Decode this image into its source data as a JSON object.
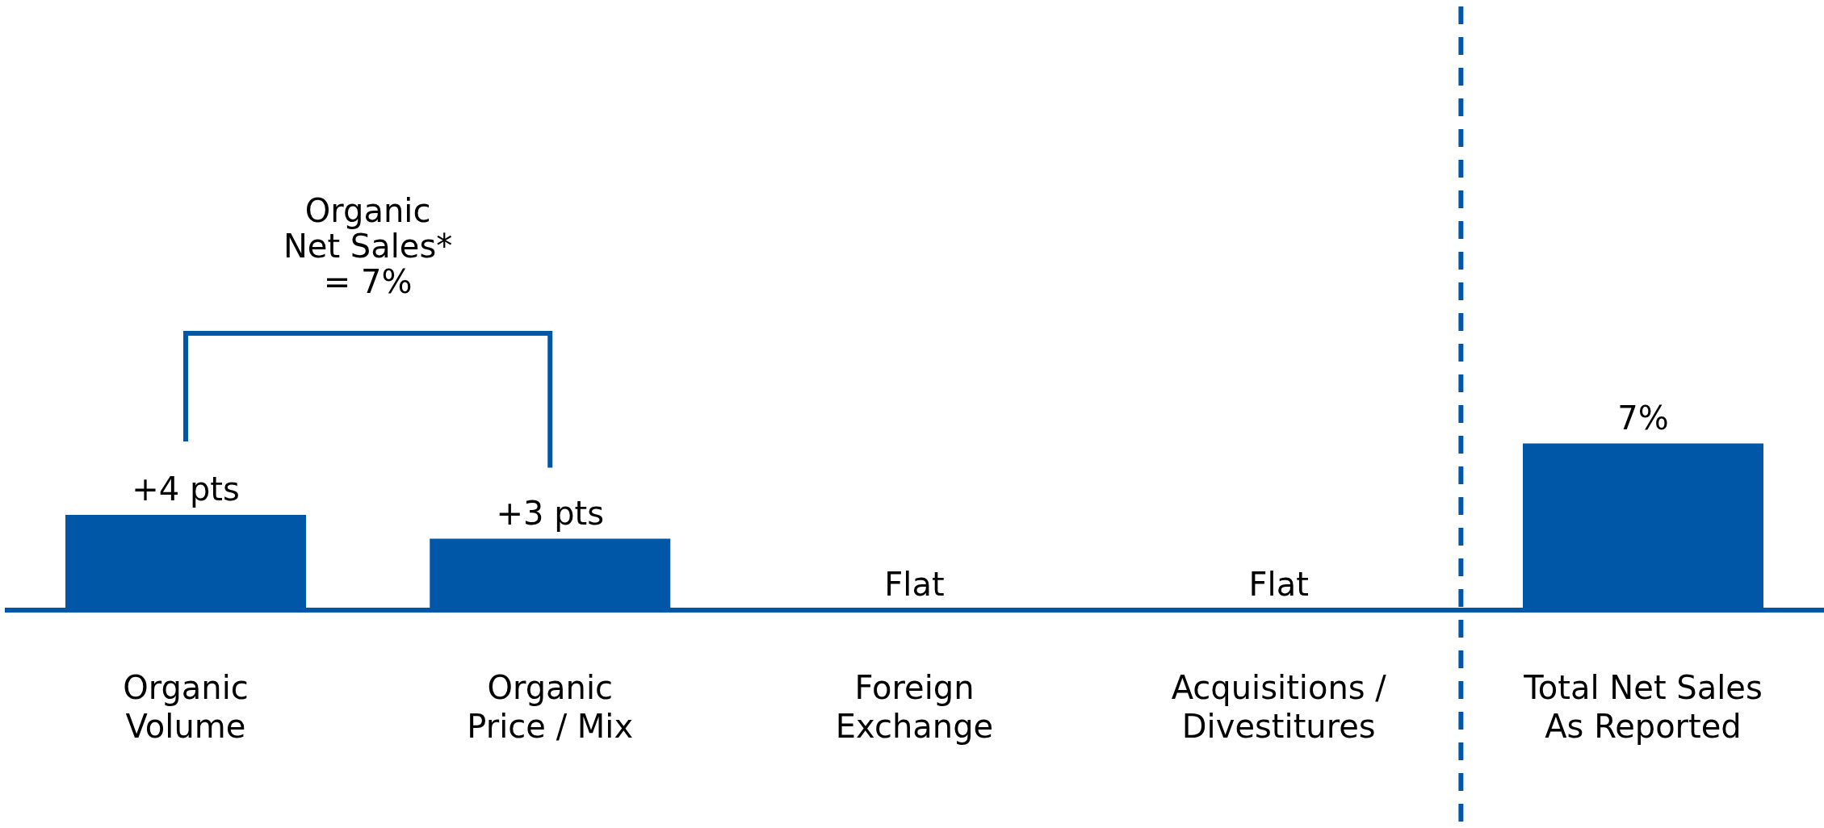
{
  "chart_data": {
    "type": "bar",
    "categories": [
      "Organic\nVolume",
      "Organic\nPrice / Mix",
      "Foreign\nExchange",
      "Acquisitions /\nDivestitures",
      "Total Net Sales\nAs Reported"
    ],
    "values": [
      4,
      3,
      0,
      0,
      7
    ],
    "value_labels": [
      "+4 pts",
      "+3 pts",
      "Flat",
      "Flat",
      "7%"
    ],
    "color": "#0057a8",
    "annotations": [
      "Organic\nNet Sales*\n= 7%"
    ]
  }
}
